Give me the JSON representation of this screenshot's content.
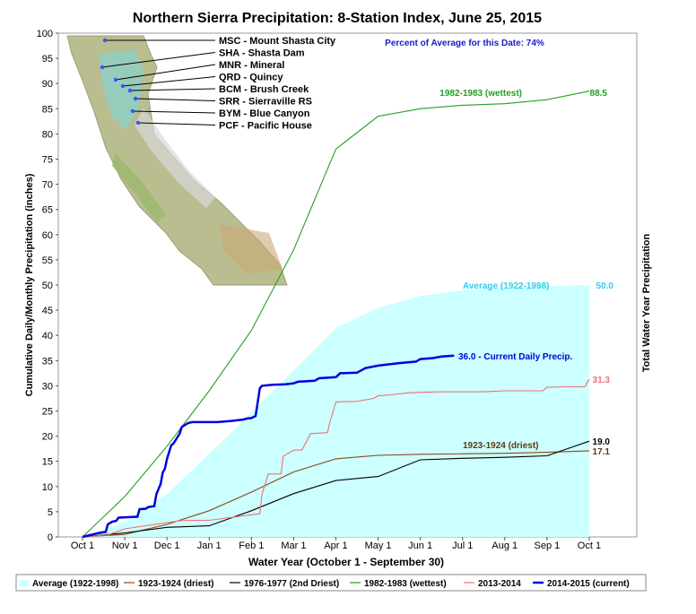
{
  "chart_data": {
    "type": "line",
    "title": "Northern Sierra Precipitation: 8-Station Index, June 25, 2015",
    "subtitle": "Percent of Average for this Date: 74%",
    "xlabel": "Water Year (October 1 - September 30)",
    "ylabel": "Cumulative Daily/Monthly Precipitation (inches)",
    "y2label": "Total Water Year Precipitation",
    "ylim": [
      0,
      100
    ],
    "yticks": [
      "0",
      "5",
      "10",
      "15",
      "20",
      "25",
      "30",
      "35",
      "40",
      "45",
      "50",
      "55",
      "60",
      "65",
      "70",
      "75",
      "80",
      "85",
      "90",
      "95",
      "100"
    ],
    "xticks": [
      "Oct 1",
      "Nov 1",
      "Dec 1",
      "Jan 1",
      "Feb 1",
      "Mar 1",
      "Apr 1",
      "May 1",
      "Jun 1",
      "Jul 1",
      "Aug 1",
      "Sep 1",
      "Oct 1"
    ],
    "legend_position": "bottom",
    "grid": false,
    "series": [
      {
        "name": "Average (1922-1998)",
        "color": "#ccffff",
        "style": "area",
        "label": "Average (1922-1998)",
        "end_value": "50.0",
        "x": [
          0,
          1,
          2,
          3,
          4,
          5,
          6,
          7,
          8,
          9,
          10,
          11,
          12
        ],
        "y": [
          0,
          3.0,
          8.5,
          16.5,
          24.7,
          33.0,
          41.5,
          45.5,
          47.8,
          49.0,
          49.5,
          49.8,
          50.0
        ]
      },
      {
        "name": "1923-1924 (driest)",
        "color": "#8b4513",
        "label": "1923-1924 (driest)",
        "end_value": "17.1",
        "x": [
          0,
          1,
          2,
          3,
          4,
          5,
          6,
          7,
          8,
          9,
          10,
          11,
          12
        ],
        "y": [
          0,
          0.5,
          2.5,
          5.2,
          8.9,
          12.9,
          15.5,
          16.2,
          16.4,
          16.5,
          16.6,
          16.8,
          17.1
        ]
      },
      {
        "name": "1976-1977 (2nd Driest)",
        "color": "#000000",
        "end_value": "19.0",
        "x": [
          0,
          1,
          2,
          3,
          4,
          5,
          6,
          7,
          8,
          9,
          10,
          11,
          12
        ],
        "y": [
          0,
          0.8,
          1.9,
          2.2,
          5.2,
          8.6,
          11.2,
          12.0,
          15.3,
          15.6,
          15.8,
          16.1,
          19.0
        ]
      },
      {
        "name": "1982-1983 (wettest)",
        "color": "#22a022",
        "label": "1982-1983 (wettest)",
        "end_value": "88.5",
        "x": [
          0,
          1,
          2,
          3,
          4,
          5,
          6,
          7,
          8,
          9,
          10,
          11,
          12
        ],
        "y": [
          0,
          8.0,
          18.0,
          29.0,
          41.0,
          57.0,
          77.0,
          83.5,
          85.0,
          85.7,
          86.0,
          86.8,
          88.5
        ]
      },
      {
        "name": "2013-2014",
        "color": "#f07070",
        "end_value": "31.3",
        "x": [
          0,
          0.6,
          1.0,
          1.8,
          2.3,
          2.5,
          3.0,
          4.0,
          4.2,
          4.25,
          4.4,
          4.7,
          4.75,
          4.85,
          5.0,
          5.2,
          5.4,
          5.8,
          5.85,
          6.0,
          6.5,
          6.9,
          7.0,
          7.3,
          7.7,
          8.0,
          8.5,
          9.0,
          9.5,
          10.0,
          10.5,
          10.9,
          11.0,
          11.5,
          11.9,
          11.95,
          12.0
        ],
        "y": [
          0,
          0.4,
          1.6,
          2.6,
          3.2,
          3.3,
          3.3,
          4.4,
          4.6,
          8.5,
          12.5,
          12.5,
          16.0,
          16.5,
          17.2,
          17.3,
          20.5,
          20.7,
          22.5,
          26.8,
          26.9,
          27.5,
          28.0,
          28.2,
          28.6,
          28.7,
          28.8,
          28.8,
          28.8,
          29.0,
          29.0,
          29.0,
          29.7,
          29.8,
          29.8,
          30.6,
          31.3
        ]
      },
      {
        "name": "2014-2015 (current)",
        "color": "#0000dd",
        "label": "36.0  -  Current Daily Precip.",
        "end_value": "36.0",
        "x": [
          0,
          0.4,
          0.55,
          0.6,
          0.7,
          0.8,
          0.85,
          1.0,
          1.3,
          1.35,
          1.5,
          1.55,
          1.7,
          1.75,
          1.85,
          1.9,
          1.95,
          2.0,
          2.1,
          2.15,
          2.3,
          2.35,
          2.5,
          2.6,
          3.0,
          3.2,
          3.5,
          3.8,
          3.9,
          4.0,
          4.1,
          4.2,
          4.25,
          4.5,
          4.8,
          5.0,
          5.1,
          5.5,
          5.6,
          6.0,
          6.1,
          6.5,
          6.7,
          7.0,
          7.2,
          7.5,
          7.9,
          8.0,
          8.3,
          8.5,
          8.8
        ],
        "y": [
          0,
          0.8,
          1.0,
          2.5,
          3.0,
          3.2,
          3.8,
          3.9,
          4.0,
          5.5,
          5.6,
          5.9,
          6.1,
          8.5,
          10.5,
          12.8,
          13.5,
          15.5,
          18.2,
          18.5,
          20.5,
          21.8,
          22.6,
          22.8,
          22.8,
          22.8,
          23.0,
          23.3,
          23.5,
          23.6,
          24.0,
          29.5,
          30.0,
          30.2,
          30.3,
          30.5,
          30.8,
          31.0,
          31.5,
          31.7,
          32.5,
          32.6,
          33.5,
          34.0,
          34.2,
          34.5,
          34.8,
          35.3,
          35.5,
          35.8,
          36.0
        ]
      }
    ],
    "stations": [
      "MSC - Mount Shasta City",
      "SHA - Shasta Dam",
      "MNR - Mineral",
      "QRD - Quincy",
      "BCM - Brush Creek",
      "SRR - Sierraville RS",
      "BYM - Blue Canyon",
      "PCF - Pacific House"
    ]
  }
}
